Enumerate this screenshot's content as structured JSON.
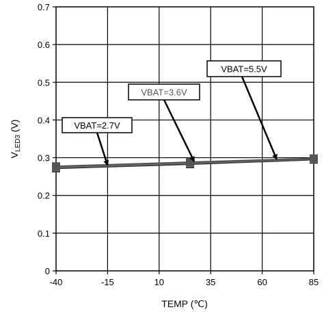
{
  "chart_data": {
    "type": "line",
    "title": "",
    "xlabel": "TEMP (℃)",
    "ylabel_main": "V",
    "ylabel_sub": "LED3",
    "ylabel_unit": " (V)",
    "xlim": [
      -40,
      85
    ],
    "ylim": [
      0,
      0.7
    ],
    "xticks": [
      "-40",
      "-15",
      "10",
      "35",
      "60",
      "85"
    ],
    "yticks": [
      "0",
      "0.1",
      "0.2",
      "0.3",
      "0.4",
      "0.5",
      "0.6",
      "0.7"
    ],
    "grid": true,
    "legend": "none",
    "series": [
      {
        "name": "VBAT=2.7V",
        "x": [
          -40,
          25,
          85
        ],
        "y": [
          0.272,
          0.283,
          0.295
        ],
        "color": "#333333"
      },
      {
        "name": "VBAT=3.6V",
        "x": [
          -40,
          25,
          85
        ],
        "y": [
          0.275,
          0.286,
          0.297
        ],
        "color": "#777777"
      },
      {
        "name": "VBAT=5.5V",
        "x": [
          -40,
          25,
          85
        ],
        "y": [
          0.277,
          0.288,
          0.298
        ],
        "color": "#555555"
      }
    ],
    "annotations": [
      {
        "text": "VBAT=2.7V",
        "grey": false,
        "points_to": [
          -15,
          0.28
        ]
      },
      {
        "text": "VBAT=3.6V",
        "grey": true,
        "points_to": [
          27,
          0.29
        ]
      },
      {
        "text": "VBAT=5.5V",
        "grey": false,
        "points_to": [
          67,
          0.296
        ]
      }
    ]
  }
}
